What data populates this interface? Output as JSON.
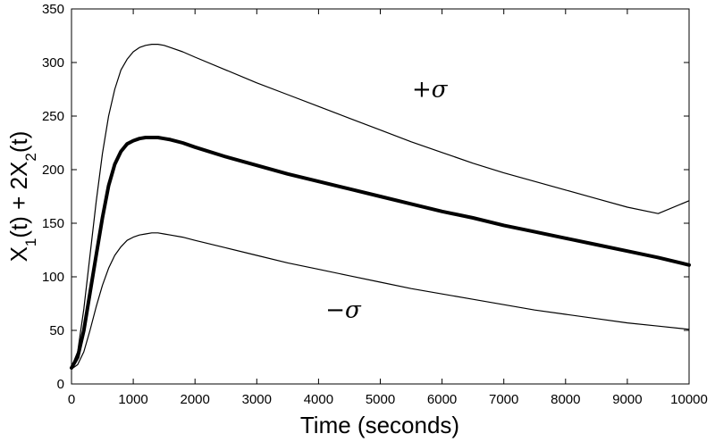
{
  "chart_data": {
    "type": "line",
    "title": "",
    "xlabel": "Time (seconds)",
    "ylabel_parts": [
      "X",
      "1",
      "(t) + 2X",
      "2",
      "(t)"
    ],
    "xlim": [
      0,
      10000
    ],
    "ylim": [
      0,
      350
    ],
    "xticks": [
      0,
      1000,
      2000,
      3000,
      4000,
      5000,
      6000,
      7000,
      8000,
      9000,
      10000
    ],
    "yticks": [
      0,
      50,
      100,
      150,
      200,
      250,
      300,
      350
    ],
    "grid": false,
    "legend": "none",
    "annotations": [
      {
        "text": "+σ",
        "x": 5800,
        "y": 268
      },
      {
        "text": "−σ",
        "x": 4400,
        "y": 62
      }
    ],
    "series": [
      {
        "style": "thin",
        "x": [
          0,
          100,
          200,
          300,
          400,
          500,
          600,
          700,
          800,
          900,
          1000,
          1100,
          1200,
          1300,
          1400,
          1500,
          1600,
          1800,
          2000,
          2500,
          3000,
          3500,
          4000,
          4500,
          5000,
          5500,
          6000,
          6500,
          7000,
          7500,
          8000,
          8500,
          9000,
          9500,
          10000
        ],
        "y": [
          16,
          30,
          70,
          120,
          170,
          215,
          250,
          275,
          293,
          303,
          310,
          314,
          316,
          317,
          317,
          316,
          314,
          310,
          305,
          293,
          281,
          270,
          259,
          248,
          237,
          226,
          216,
          206,
          197,
          189,
          181,
          173,
          165,
          159,
          171
        ]
      },
      {
        "style": "thick",
        "x": [
          0,
          100,
          200,
          300,
          400,
          500,
          600,
          700,
          800,
          900,
          1000,
          1100,
          1200,
          1300,
          1400,
          1500,
          1600,
          1800,
          2000,
          2500,
          3000,
          3500,
          4000,
          4500,
          5000,
          5500,
          6000,
          6500,
          7000,
          7500,
          8000,
          8500,
          9000,
          9500,
          10000
        ],
        "y": [
          15,
          25,
          50,
          85,
          120,
          155,
          185,
          205,
          217,
          224,
          227,
          229,
          230,
          230,
          230,
          229,
          228,
          225,
          221,
          212,
          204,
          196,
          189,
          182,
          175,
          168,
          161,
          155,
          148,
          142,
          136,
          130,
          124,
          118,
          111
        ]
      },
      {
        "style": "thin",
        "x": [
          0,
          100,
          200,
          300,
          400,
          500,
          600,
          700,
          800,
          900,
          1000,
          1100,
          1200,
          1300,
          1400,
          1500,
          1600,
          1800,
          2000,
          2500,
          3000,
          3500,
          4000,
          4500,
          5000,
          5500,
          6000,
          6500,
          7000,
          7500,
          8000,
          8500,
          9000,
          9500,
          10000
        ],
        "y": [
          14,
          18,
          30,
          50,
          72,
          92,
          108,
          120,
          128,
          134,
          137,
          139,
          140,
          141,
          141,
          140,
          139,
          137,
          134,
          127,
          120,
          113,
          107,
          101,
          95,
          89,
          84,
          79,
          74,
          69,
          65,
          61,
          57,
          54,
          51
        ]
      }
    ]
  }
}
